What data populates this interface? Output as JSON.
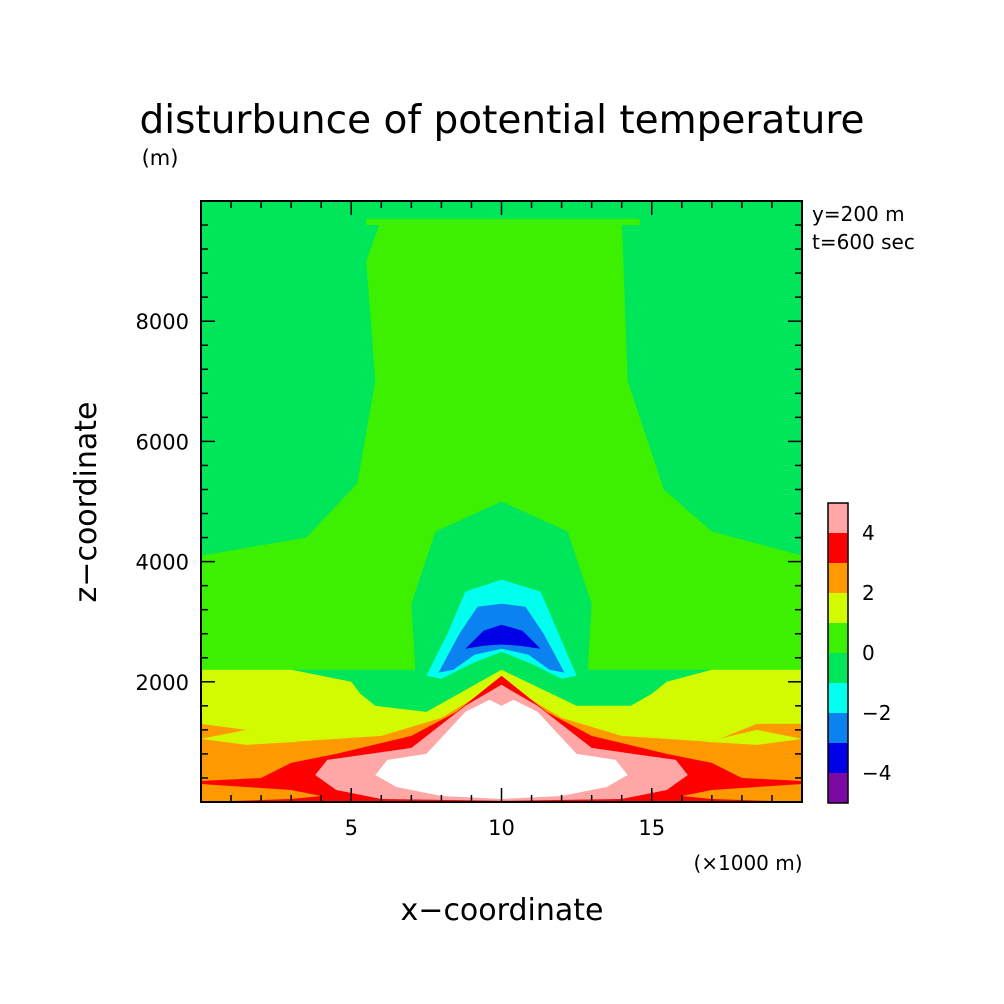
{
  "chart_data": {
    "type": "heatmap",
    "title": "disturbunce of potential temperature",
    "unit_label": "(m)",
    "xlabel": "x−coordinate",
    "ylabel": "z−coordinate",
    "x_unit_label": "(×1000 m)",
    "annotations": [
      "y=200 m",
      "t=600 sec"
    ],
    "xlim": [
      0,
      20
    ],
    "ylim": [
      0,
      10000
    ],
    "x_ticks": [
      5,
      10,
      15
    ],
    "x_tick_labels": [
      "5",
      "10",
      "15"
    ],
    "y_ticks": [
      2000,
      4000,
      6000,
      8000
    ],
    "y_tick_labels": [
      "2000",
      "4000",
      "6000",
      "8000"
    ],
    "colorbar": {
      "levels": [
        -5,
        -4,
        -3,
        -2,
        -1,
        0,
        1,
        2,
        3,
        4,
        5
      ],
      "tick_labels": [
        "−4",
        "−2",
        "0",
        "2",
        "4"
      ],
      "tick_values": [
        -4,
        -2,
        0,
        2,
        4
      ],
      "colors": [
        "#7b0aa3",
        "#0000e6",
        "#0a82f0",
        "#00ffee",
        "#00e65a",
        "#3cf000",
        "#d2fa00",
        "#ff9900",
        "#ff0000",
        "#ffa6a6"
      ],
      "above_max_color": "#ffffff"
    },
    "regions": [
      {
        "level": "0 to 1",
        "color": "#3cf000",
        "points": [
          [
            6,
            9.7
          ],
          [
            14,
            9.7
          ],
          [
            14.2,
            7
          ],
          [
            15.4,
            5.2
          ],
          [
            17,
            4.5
          ],
          [
            20,
            4.1
          ],
          [
            20,
            2.2
          ],
          [
            0,
            2.2
          ],
          [
            0,
            4.1
          ],
          [
            3.5,
            4.4
          ],
          [
            5.2,
            5.3
          ],
          [
            5.8,
            7
          ],
          [
            5.5,
            9.0
          ]
        ]
      },
      {
        "level": "0 to 1",
        "color": "#3cf000",
        "points": [
          [
            5.5,
            9.6
          ],
          [
            14.6,
            9.6
          ],
          [
            14.6,
            9.7
          ],
          [
            5.5,
            9.7
          ]
        ]
      },
      {
        "level": "-1 to 0",
        "color": "#00e65a",
        "points": [
          [
            7.2,
            1.6
          ],
          [
            7.0,
            3.3
          ],
          [
            7.8,
            4.5
          ],
          [
            10,
            5.0
          ],
          [
            12.2,
            4.5
          ],
          [
            13.0,
            3.3
          ],
          [
            12.8,
            1.6
          ],
          [
            10,
            1.9
          ]
        ]
      },
      {
        "level": "1 to 2",
        "color": "#d2fa00",
        "points": [
          [
            0,
            2.2
          ],
          [
            3.0,
            2.2
          ],
          [
            5.0,
            2.0
          ],
          [
            5.3,
            1.8
          ],
          [
            5.8,
            1.6
          ],
          [
            7.5,
            1.5
          ],
          [
            10,
            2.2
          ],
          [
            12.5,
            1.6
          ],
          [
            14.3,
            1.6
          ],
          [
            15,
            1.8
          ],
          [
            15.5,
            2.0
          ],
          [
            17,
            2.2
          ],
          [
            20,
            2.2
          ],
          [
            20,
            0
          ],
          [
            0,
            0
          ]
        ]
      },
      {
        "level": "2 to 3",
        "color": "#ff9900",
        "points": [
          [
            0,
            1.3
          ],
          [
            1.5,
            1.2
          ],
          [
            3,
            1.0
          ],
          [
            6,
            1.1
          ],
          [
            8,
            1.4
          ],
          [
            10,
            2.0
          ],
          [
            12,
            1.4
          ],
          [
            14,
            1.1
          ],
          [
            17,
            1.0
          ],
          [
            18.5,
            1.3
          ],
          [
            20,
            1.3
          ],
          [
            20,
            0
          ],
          [
            0,
            0
          ]
        ]
      },
      {
        "level": "1 to 2",
        "color": "#d2fa00",
        "points": [
          [
            0,
            1.05
          ],
          [
            1.5,
            1.2
          ],
          [
            3.2,
            1.0
          ],
          [
            1.5,
            0.95
          ]
        ]
      },
      {
        "level": "1 to 2",
        "color": "#d2fa00",
        "points": [
          [
            20,
            1.05
          ],
          [
            18.5,
            1.2
          ],
          [
            16.8,
            1.0
          ],
          [
            18.5,
            0.95
          ]
        ]
      },
      {
        "level": "3 to 4",
        "color": "#ff0000",
        "points": [
          [
            0,
            0.35
          ],
          [
            2,
            0.4
          ],
          [
            3,
            0.65
          ],
          [
            4.5,
            0.8
          ],
          [
            7,
            1.1
          ],
          [
            8.5,
            1.5
          ],
          [
            10,
            2.1
          ],
          [
            11.5,
            1.5
          ],
          [
            13,
            1.1
          ],
          [
            15.5,
            0.8
          ],
          [
            17,
            0.65
          ],
          [
            18,
            0.4
          ],
          [
            20,
            0.35
          ],
          [
            20,
            0
          ],
          [
            0,
            0
          ]
        ]
      },
      {
        "level": "2 to 3",
        "color": "#ff9900",
        "points": [
          [
            0,
            0.3
          ],
          [
            1.5,
            0.25
          ],
          [
            3,
            0.2
          ],
          [
            4,
            0.1
          ],
          [
            3,
            0.05
          ],
          [
            0,
            0
          ]
        ]
      },
      {
        "level": "2 to 3",
        "color": "#ff9900",
        "points": [
          [
            20,
            0.3
          ],
          [
            18.5,
            0.25
          ],
          [
            17,
            0.2
          ],
          [
            16,
            0.1
          ],
          [
            17,
            0.05
          ],
          [
            20,
            0
          ]
        ]
      },
      {
        "level": "4 to 5",
        "color": "#ffa6a6",
        "points": [
          [
            3.8,
            0.45
          ],
          [
            4.2,
            0.7
          ],
          [
            7,
            0.9
          ],
          [
            8.8,
            1.6
          ],
          [
            10,
            1.95
          ],
          [
            11.2,
            1.6
          ],
          [
            13,
            0.9
          ],
          [
            15.8,
            0.7
          ],
          [
            16.2,
            0.45
          ],
          [
            15.5,
            0.2
          ],
          [
            14,
            0.05
          ],
          [
            10,
            0.02
          ],
          [
            6,
            0.05
          ],
          [
            4.5,
            0.2
          ]
        ]
      },
      {
        "level": "above 5",
        "color": "#ffffff",
        "points": [
          [
            5.8,
            0.45
          ],
          [
            6.2,
            0.7
          ],
          [
            7.5,
            0.8
          ],
          [
            8.8,
            1.5
          ],
          [
            9.6,
            1.7
          ],
          [
            10,
            1.6
          ],
          [
            10.4,
            1.7
          ],
          [
            11.2,
            1.5
          ],
          [
            12.5,
            0.8
          ],
          [
            13.8,
            0.7
          ],
          [
            14.2,
            0.45
          ],
          [
            13.5,
            0.25
          ],
          [
            12,
            0.1
          ],
          [
            10,
            0.05
          ],
          [
            8,
            0.1
          ],
          [
            6.5,
            0.25
          ]
        ]
      },
      {
        "level": "-2 to -1",
        "color": "#00ffee",
        "points": [
          [
            7.5,
            2.1
          ],
          [
            8.2,
            2.8
          ],
          [
            8.8,
            3.5
          ],
          [
            10,
            3.7
          ],
          [
            11.3,
            3.5
          ],
          [
            11.9,
            2.8
          ],
          [
            12.5,
            2.1
          ],
          [
            12.0,
            2.05
          ],
          [
            11.0,
            2.3
          ],
          [
            10,
            2.5
          ],
          [
            9.0,
            2.3
          ],
          [
            8.0,
            2.05
          ]
        ]
      },
      {
        "level": "-3 to -2",
        "color": "#0a82f0",
        "points": [
          [
            7.9,
            2.15
          ],
          [
            8.6,
            2.8
          ],
          [
            9.2,
            3.25
          ],
          [
            10,
            3.3
          ],
          [
            10.8,
            3.25
          ],
          [
            11.4,
            2.8
          ],
          [
            12.1,
            2.15
          ],
          [
            11.6,
            2.2
          ],
          [
            10.9,
            2.45
          ],
          [
            10,
            2.55
          ],
          [
            9.1,
            2.45
          ],
          [
            8.4,
            2.2
          ]
        ]
      },
      {
        "level": "-4 to -3",
        "color": "#0000e6",
        "points": [
          [
            8.8,
            2.55
          ],
          [
            9.4,
            2.85
          ],
          [
            10,
            2.95
          ],
          [
            10.7,
            2.85
          ],
          [
            11.3,
            2.55
          ],
          [
            10.6,
            2.6
          ],
          [
            10,
            2.62
          ],
          [
            9.4,
            2.6
          ]
        ]
      }
    ]
  }
}
